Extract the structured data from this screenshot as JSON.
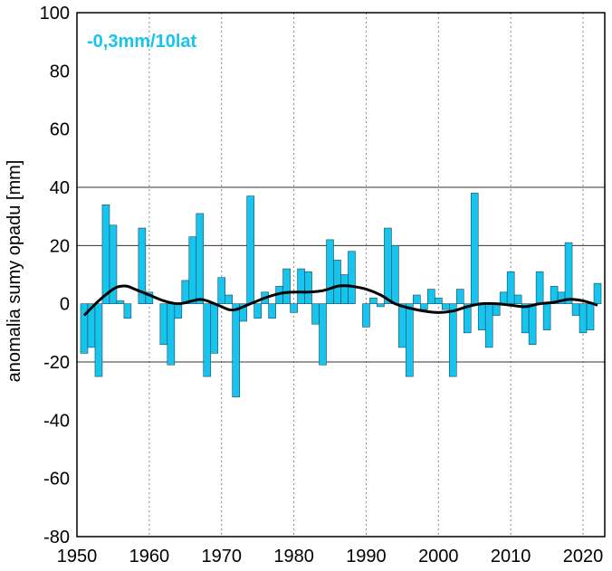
{
  "chart_data": {
    "type": "bar",
    "title": "",
    "xlabel": "",
    "ylabel": "anomalia sumy opadu [mm]",
    "annotation": "-0,3mm/10lat",
    "xlim": [
      1950,
      2023
    ],
    "ylim": [
      -80,
      100
    ],
    "x_ticks": [
      "1950",
      "1960",
      "1970",
      "1980",
      "1990",
      "2000",
      "2010",
      "2020"
    ],
    "y_ticks": [
      "100",
      "80",
      "60",
      "40",
      "20",
      "0",
      "-20",
      "-40",
      "-60",
      "-80"
    ],
    "grid": "dashed vertical at each decade, solid horizontal at ±20, ±40",
    "colors": {
      "bar": "#17c4ee",
      "bar_edge": "#1a4a5a",
      "smooth": "#000000",
      "annotation": "#17c4ee"
    },
    "series": [
      {
        "type": "bar",
        "x": [
          1951,
          1952,
          1953,
          1954,
          1955,
          1956,
          1957,
          1958,
          1959,
          1960,
          1961,
          1962,
          1963,
          1964,
          1965,
          1966,
          1967,
          1968,
          1969,
          1970,
          1971,
          1972,
          1973,
          1974,
          1975,
          1976,
          1977,
          1978,
          1979,
          1980,
          1981,
          1982,
          1983,
          1984,
          1985,
          1986,
          1987,
          1988,
          1989,
          1990,
          1991,
          1992,
          1993,
          1994,
          1995,
          1996,
          1997,
          1998,
          1999,
          2000,
          2001,
          2002,
          2003,
          2004,
          2005,
          2006,
          2007,
          2008,
          2009,
          2010,
          2011,
          2012,
          2013,
          2014,
          2015,
          2016,
          2017,
          2018,
          2019,
          2020,
          2021,
          2022
        ],
        "values": [
          -17,
          -15,
          -25,
          34,
          27,
          1,
          -5,
          0,
          26,
          4,
          0,
          -14,
          -21,
          -5,
          8,
          23,
          31,
          -25,
          -17,
          9,
          3,
          -32,
          -6,
          37,
          -5,
          4,
          -5,
          6,
          12,
          -3,
          12,
          11,
          -7,
          -21,
          22,
          15,
          10,
          18,
          0,
          -8,
          2,
          -1,
          26,
          20,
          -15,
          -25,
          3,
          -2,
          5,
          2,
          -2,
          -25,
          5,
          -10,
          38,
          -9,
          -15,
          -4,
          4,
          11,
          3,
          -10,
          -14,
          11,
          -9,
          6,
          4,
          21,
          -4,
          -10,
          -9,
          7
        ]
      },
      {
        "type": "line",
        "x": [
          1951,
          1953,
          1955,
          1956,
          1957,
          1958,
          1960,
          1962,
          1964,
          1966,
          1967,
          1968,
          1970,
          1971,
          1972,
          1974,
          1976,
          1978,
          1980,
          1982,
          1984,
          1986,
          1987,
          1988,
          1990,
          1992,
          1994,
          1996,
          1998,
          2000,
          2002,
          2004,
          2006,
          2008,
          2010,
          2012,
          2014,
          2016,
          2018,
          2020,
          2022
        ],
        "values": [
          -4,
          1,
          5,
          6,
          6,
          5,
          3,
          1,
          0,
          1,
          1.5,
          1,
          -1,
          -2,
          -2,
          0,
          2,
          3.5,
          4,
          4,
          4.5,
          6,
          6.2,
          6,
          5,
          3,
          0,
          -1.5,
          -2.5,
          -3,
          -2.5,
          -1,
          0,
          0,
          -0.5,
          -1,
          0,
          0.5,
          1.5,
          1,
          -0.5
        ]
      }
    ]
  }
}
